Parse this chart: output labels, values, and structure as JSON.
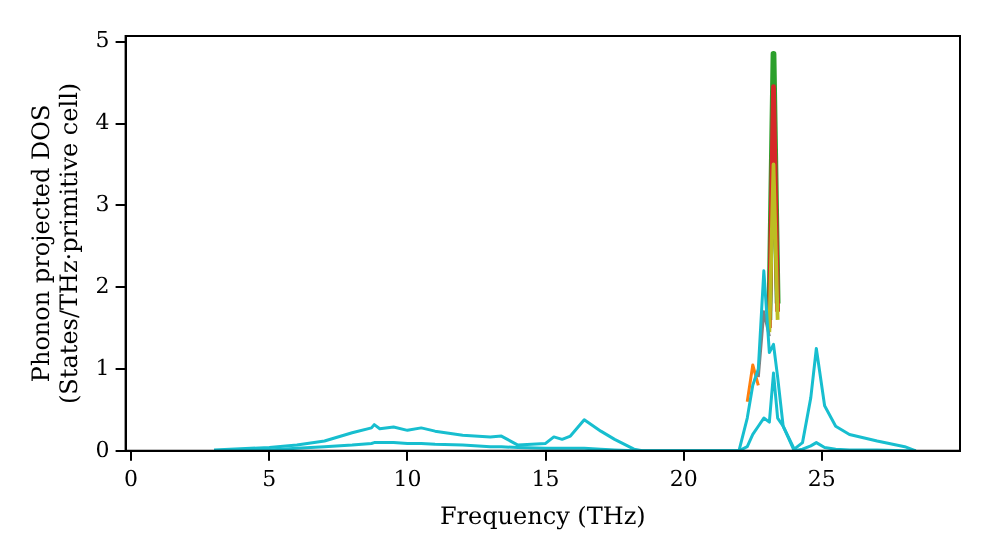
{
  "chart_data": {
    "type": "line",
    "xlabel": "Frequency (THz)",
    "ylabel": "Phonon projected DOS\n(States/THz·primitive cell)",
    "x": [
      3,
      5,
      6,
      7,
      8,
      8.7,
      8.8,
      9,
      9.5,
      10,
      10.5,
      11,
      12,
      13,
      13.4,
      14,
      15,
      15.3,
      15.6,
      15.9,
      16.4,
      17,
      17.5,
      18.2,
      18.5,
      22,
      22.3,
      22.5,
      22.7,
      22.9,
      23.1,
      23.25,
      23.4,
      23.6,
      24,
      24.3,
      24.6,
      24.8,
      25.1,
      25.5,
      26,
      27,
      28,
      28.4
    ],
    "series": [
      {
        "color": "#2ca02c",
        "values": [
          null,
          null,
          null,
          null,
          null,
          null,
          null,
          null,
          null,
          null,
          null,
          null,
          null,
          null,
          null,
          null,
          null,
          null,
          null,
          null,
          null,
          null,
          null,
          null,
          null,
          null,
          null,
          null,
          null,
          null,
          1.6,
          4.85,
          1.8,
          null,
          null,
          null,
          null,
          null,
          null,
          null,
          null,
          null,
          null,
          null
        ]
      },
      {
        "color": "#d62728",
        "values": [
          null,
          null,
          null,
          null,
          null,
          null,
          null,
          null,
          null,
          null,
          null,
          null,
          null,
          null,
          null,
          null,
          null,
          null,
          null,
          null,
          null,
          null,
          null,
          null,
          null,
          null,
          null,
          null,
          null,
          null,
          1.5,
          4.45,
          1.7,
          null,
          null,
          null,
          null,
          null,
          null,
          null,
          null,
          null,
          null,
          null
        ]
      },
      {
        "color": "#bcbd22",
        "values": [
          null,
          null,
          null,
          null,
          null,
          null,
          null,
          null,
          null,
          null,
          null,
          null,
          null,
          null,
          null,
          null,
          null,
          null,
          null,
          null,
          null,
          null,
          null,
          null,
          null,
          null,
          null,
          null,
          null,
          null,
          1.45,
          3.5,
          1.6,
          null,
          null,
          null,
          null,
          null,
          null,
          null,
          null,
          null,
          null,
          null
        ]
      },
      {
        "color": "#7f7f7f",
        "values": [
          null,
          null,
          null,
          null,
          null,
          null,
          null,
          null,
          null,
          null,
          null,
          null,
          null,
          null,
          null,
          null,
          null,
          null,
          null,
          null,
          null,
          null,
          null,
          null,
          null,
          null,
          null,
          null,
          0.9,
          1.7,
          1.4,
          null,
          null,
          null,
          null,
          null,
          null,
          null,
          null,
          null,
          null,
          null,
          null,
          null
        ]
      },
      {
        "color": "#ff7f0e",
        "values": [
          null,
          null,
          null,
          null,
          null,
          null,
          null,
          null,
          null,
          null,
          null,
          null,
          null,
          null,
          null,
          null,
          null,
          null,
          null,
          null,
          null,
          null,
          null,
          null,
          null,
          null,
          0.6,
          1.05,
          0.8,
          null,
          null,
          null,
          null,
          null,
          null,
          null,
          null,
          null,
          null,
          null,
          null,
          null,
          null,
          null
        ]
      },
      {
        "color": "#17becf",
        "values": [
          0.01,
          0.04,
          0.07,
          0.12,
          0.22,
          0.28,
          0.32,
          0.27,
          0.29,
          0.25,
          0.28,
          0.24,
          0.19,
          0.17,
          0.18,
          0.07,
          0.09,
          0.17,
          0.14,
          0.18,
          0.38,
          0.24,
          0.14,
          0.02,
          0,
          0,
          0.4,
          0.8,
          1.0,
          2.2,
          1.2,
          1.3,
          0.9,
          0.3,
          0.02,
          0.1,
          0.65,
          1.25,
          0.55,
          0.3,
          0.2,
          0.12,
          0.05,
          0
        ]
      },
      {
        "color": "#17becf",
        "values": [
          0,
          0.01,
          0.03,
          0.05,
          0.07,
          0.09,
          0.1,
          0.1,
          0.1,
          0.09,
          0.09,
          0.08,
          0.07,
          0.05,
          0.05,
          0.04,
          0.03,
          0.03,
          0.03,
          0.03,
          0.03,
          0.02,
          0.01,
          0,
          0,
          0,
          0.05,
          0.2,
          0.3,
          0.4,
          0.35,
          0.95,
          0.4,
          0.3,
          0,
          0.02,
          0.06,
          0.1,
          0.04,
          0.02,
          0.01,
          0.01,
          0,
          0
        ]
      }
    ],
    "xlim": [
      -0.2,
      30
    ],
    "xticks": [
      0,
      5,
      10,
      15,
      20,
      25
    ],
    "ylim": [
      0,
      5.07
    ],
    "yticks": [
      0,
      1,
      2,
      3,
      4,
      5
    ],
    "grid": false,
    "legend": false,
    "marker": "none",
    "line_style": "solid"
  }
}
